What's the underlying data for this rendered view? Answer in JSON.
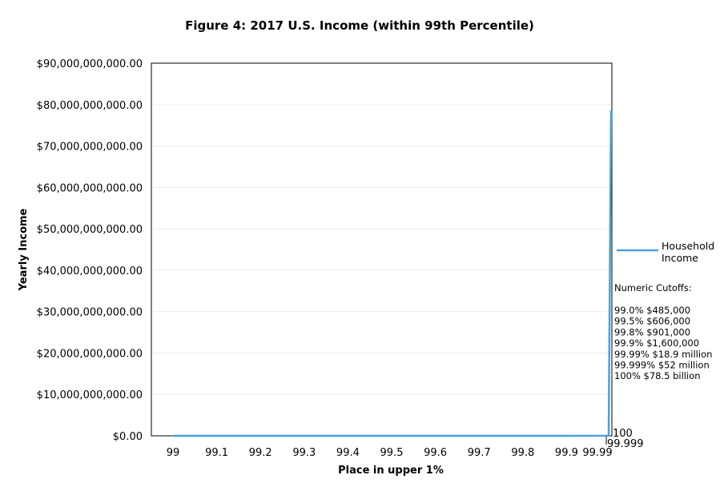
{
  "chart_data": {
    "type": "line",
    "title": "Figure 4: 2017 U.S. Income (within 99th Percentile)",
    "xlabel": "Place in upper 1%",
    "ylabel": "Yearly Income",
    "ylim": [
      0,
      90000000000
    ],
    "xlim": [
      99,
      100
    ],
    "yticks": [
      0,
      10000000000,
      20000000000,
      30000000000,
      40000000000,
      50000000000,
      60000000000,
      70000000000,
      80000000000,
      90000000000
    ],
    "ytick_labels": [
      "$0.00",
      "$10,000,000,000.00",
      "$20,000,000,000.00",
      "$30,000,000,000.00",
      "$40,000,000,000.00",
      "$50,000,000,000.00",
      "$60,000,000,000.00",
      "$70,000,000,000.00",
      "$80,000,000,000.00",
      "$90,000,000,000.00"
    ],
    "x_tick_labels": [
      "99",
      "99.1",
      "99.2",
      "99.3",
      "99.4",
      "99.5",
      "99.6",
      "99.7",
      "99.8",
      "99.9",
      "99.99",
      "100",
      "99.999"
    ],
    "grid": true,
    "legend_position": "right",
    "series": [
      {
        "name": "Household Income",
        "color": "#4a9fdc",
        "x": [
          99.0,
          99.5,
          99.8,
          99.9,
          99.99,
          99.999,
          100
        ],
        "y": [
          485000,
          606000,
          901000,
          1600000,
          18900000,
          52000000,
          78500000000
        ]
      }
    ],
    "annotation_title": "Numeric Cutoffs:",
    "annotations": [
      "99.0%  $485,000",
      "99.5%  $606,000",
      "99.8%  $901,000",
      "99.9%  $1,600,000",
      "99.99% $18.9 million",
      "99.999% $52 million",
      "100% $78.5 billion"
    ]
  }
}
